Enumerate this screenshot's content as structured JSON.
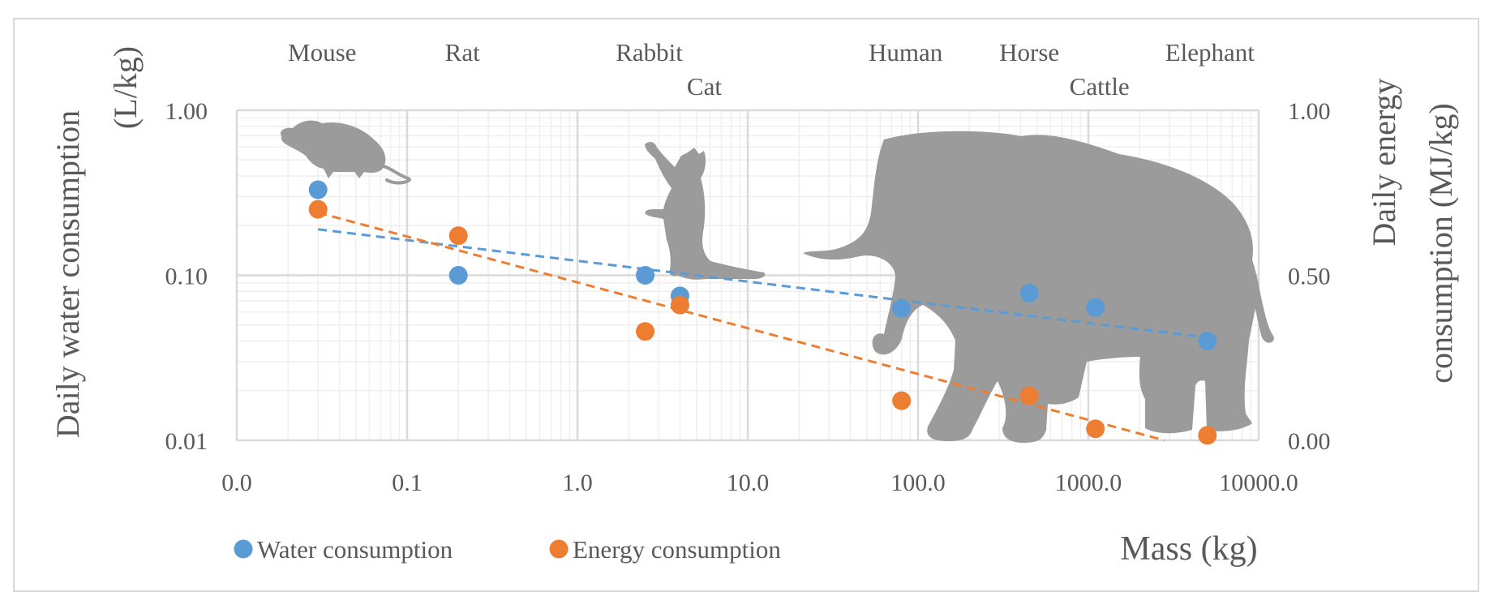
{
  "chart_data": {
    "type": "scatter",
    "title": "",
    "xlabel": "Mass (kg)",
    "ylabel": "Daily water consumption (L/kg)",
    "y2label": "Daily energy consumption (MJ/kg)",
    "x_scale": "log",
    "xlim": [
      0.01,
      10000
    ],
    "x_tick_labels": [
      "0.0",
      "0.1",
      "1.0",
      "10.0",
      "100.0",
      "1000.0",
      "10000.0"
    ],
    "y_scale": "log",
    "ylim": [
      0.01,
      1
    ],
    "y_tick_labels": [
      "0.01",
      "0.10",
      "1.00"
    ],
    "y2lim": [
      0,
      1
    ],
    "y2_tick_labels": [
      "0.00",
      "0.50",
      "1.00"
    ],
    "grid": true,
    "legend_position": "bottom-left",
    "animals": [
      {
        "name": "Mouse",
        "mass": 0.03
      },
      {
        "name": "Rat",
        "mass": 0.2
      },
      {
        "name": "Rabbit",
        "mass": 2.5
      },
      {
        "name": "Cat",
        "mass": 4
      },
      {
        "name": "Human",
        "mass": 80
      },
      {
        "name": "Horse",
        "mass": 450
      },
      {
        "name": "Cattle",
        "mass": 1100
      },
      {
        "name": "Elephant",
        "mass": 5000
      }
    ],
    "silhouettes": [
      "mouse",
      "cat",
      "elephant"
    ],
    "series": [
      {
        "name": "Water consumption",
        "axis": "left",
        "color": "#5b9bd5",
        "x": [
          0.03,
          0.2,
          2.5,
          4,
          80,
          450,
          1100,
          5000
        ],
        "y": [
          0.33,
          0.1,
          0.1,
          0.075,
          0.063,
          0.078,
          0.064,
          0.04
        ],
        "trendline": {
          "type": "power",
          "from": [
            0.03,
            0.19
          ],
          "to": [
            5000,
            0.042
          ],
          "color": "#5b9bd5"
        }
      },
      {
        "name": "Energy consumption",
        "axis": "right",
        "color": "#ed7d31",
        "x": [
          0.03,
          0.2,
          2.5,
          4,
          80,
          450,
          1100,
          5000
        ],
        "y": [
          0.7,
          0.62,
          0.33,
          0.41,
          0.12,
          0.135,
          0.035,
          0.015
        ],
        "trendline": {
          "type": "linear-in-log-x",
          "from": [
            0.03,
            0.69
          ],
          "to": [
            2800,
            0.0
          ],
          "color": "#ed7d31"
        }
      }
    ]
  }
}
